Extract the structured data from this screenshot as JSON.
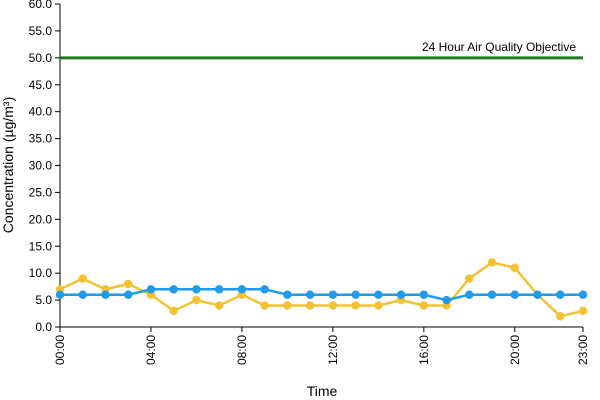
{
  "chart_data": {
    "type": "line",
    "title": "",
    "xlabel": "Time",
    "ylabel": "Concentration (µg/m³)",
    "ylim": [
      0,
      60
    ],
    "y_ticks": [
      "0.0",
      "5.0",
      "10.0",
      "15.0",
      "20.0",
      "25.0",
      "30.0",
      "35.0",
      "40.0",
      "45.0",
      "50.0",
      "55.0",
      "60.0"
    ],
    "x": [
      "00:00",
      "01:00",
      "02:00",
      "03:00",
      "04:00",
      "05:00",
      "06:00",
      "07:00",
      "08:00",
      "09:00",
      "10:00",
      "11:00",
      "12:00",
      "13:00",
      "14:00",
      "15:00",
      "16:00",
      "17:00",
      "18:00",
      "19:00",
      "20:00",
      "21:00",
      "22:00",
      "23:00"
    ],
    "x_tick_labels": [
      "00:00",
      "04:00",
      "08:00",
      "12:00",
      "16:00",
      "20:00",
      "23:00"
    ],
    "grid": false,
    "series": [
      {
        "color": "#f2c233",
        "values": [
          7,
          9,
          7,
          8,
          6,
          3,
          5,
          4,
          6,
          4,
          4,
          4,
          4,
          4,
          4,
          5,
          4,
          4,
          9,
          12,
          11,
          6,
          2,
          3
        ]
      },
      {
        "color": "#1e9be9",
        "values": [
          6,
          6,
          6,
          6,
          7,
          7,
          7,
          7,
          7,
          7,
          6,
          6,
          6,
          6,
          6,
          6,
          6,
          5,
          6,
          6,
          6,
          6,
          6,
          6
        ]
      }
    ],
    "reference_line": {
      "label": "24 Hour Air Quality Objective",
      "value": 50,
      "color": "#1f7a1f"
    }
  }
}
